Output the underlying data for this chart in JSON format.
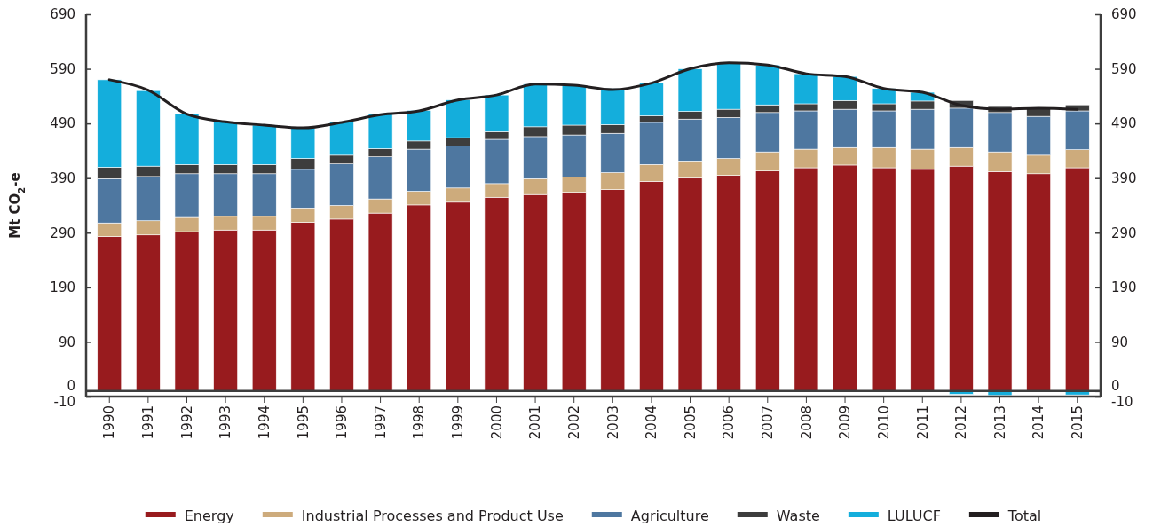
{
  "chart_data": {
    "type": "bar",
    "stacked": true,
    "ylabel": "Mt CO$_{2}$-e",
    "categories": [
      "1990",
      "1991",
      "1992",
      "1993",
      "1994",
      "1995",
      "1996",
      "1997",
      "1998",
      "1999",
      "2000",
      "2001",
      "2002",
      "2003",
      "2004",
      "2005",
      "2006",
      "2007",
      "2008",
      "2009",
      "2010",
      "2011",
      "2012",
      "2013",
      "2014",
      "2015"
    ],
    "ylim": [
      -10,
      690
    ],
    "yticks": [
      -10,
      0,
      90,
      190,
      290,
      390,
      490,
      590,
      690
    ],
    "y2lim": [
      -10,
      690
    ],
    "y2ticks": [
      -10,
      0,
      90,
      190,
      290,
      390,
      490,
      590,
      690
    ],
    "legend": "bottom",
    "ref_lines": [
      {
        "axis": "y",
        "value": 0,
        "color": "#3d3d3d"
      }
    ],
    "series": [
      {
        "name": "Energy",
        "color": "#981b1e",
        "values": [
          283,
          286,
          292,
          295,
          295,
          309,
          315,
          326,
          341,
          346,
          355,
          360,
          364,
          369,
          384,
          390,
          395,
          403,
          409,
          414,
          409,
          406,
          412,
          402,
          398,
          409
        ]
      },
      {
        "name": "Industrial Processes and Product Use",
        "color": "#cdab7c",
        "values": [
          25,
          26,
          26,
          25,
          25,
          25,
          25,
          26,
          25,
          26,
          25,
          29,
          28,
          31,
          31,
          30,
          31,
          35,
          34,
          32,
          37,
          37,
          34,
          36,
          34,
          33
        ]
      },
      {
        "name": "Agriculture",
        "color": "#4e77a0",
        "values": [
          81,
          81,
          80,
          78,
          78,
          72,
          76,
          77,
          77,
          77,
          81,
          77,
          77,
          72,
          77,
          78,
          75,
          72,
          70,
          70,
          67,
          73,
          72,
          72,
          71,
          71
        ]
      },
      {
        "name": "Waste",
        "color": "#3d3d3d",
        "values": [
          21,
          19,
          17,
          17,
          17,
          20,
          16,
          15,
          15,
          15,
          14,
          18,
          18,
          16,
          12,
          14,
          15,
          14,
          13,
          16,
          13,
          15,
          14,
          11,
          15,
          11
        ]
      },
      {
        "name": "LULUCF",
        "color": "#14aedc",
        "values": [
          160,
          138,
          93,
          78,
          72,
          56,
          61,
          64,
          56,
          69,
          67,
          78,
          73,
          66,
          60,
          78,
          84,
          73,
          55,
          44,
          28,
          16,
          -6,
          -8,
          null,
          -7
        ]
      },
      {
        "name": "Total",
        "type": "line",
        "color": "#231f20",
        "values": [
          570,
          551,
          507,
          493,
          487,
          482,
          492,
          506,
          513,
          533,
          542,
          562,
          560,
          552,
          564,
          590,
          601,
          597,
          581,
          576,
          554,
          547,
          523,
          516,
          518,
          516
        ]
      }
    ]
  }
}
